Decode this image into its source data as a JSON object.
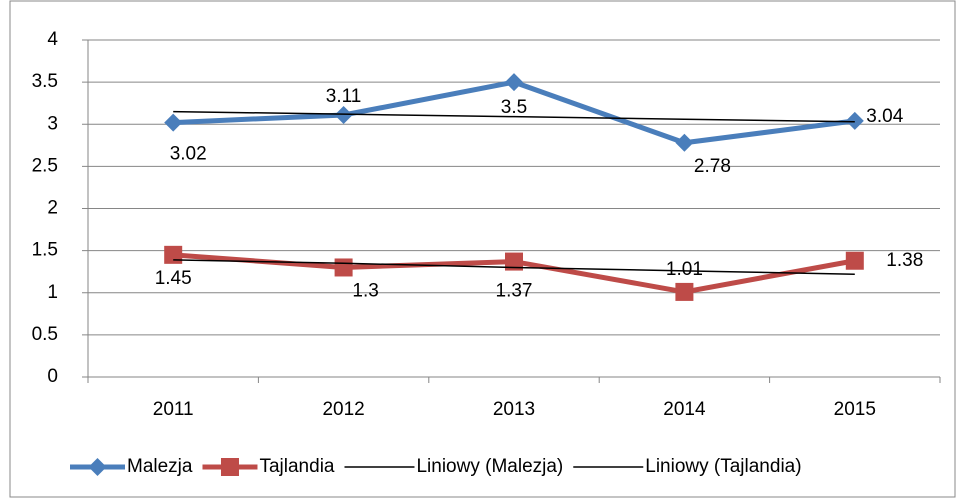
{
  "chart_data": {
    "type": "line",
    "categories": [
      "2011",
      "2012",
      "2013",
      "2014",
      "2015"
    ],
    "series": [
      {
        "name": "Malezja",
        "color": "#4a7ebb",
        "marker": "diamond",
        "values": [
          3.02,
          3.11,
          3.5,
          2.78,
          3.04
        ]
      },
      {
        "name": "Tajlandia",
        "color": "#be4b48",
        "marker": "square",
        "values": [
          1.45,
          1.3,
          1.37,
          1.01,
          1.38
        ]
      },
      {
        "name": "Liniowy (Malezja)",
        "color": "#000000",
        "trend": true,
        "values": [
          3.15,
          3.12,
          3.09,
          3.06,
          3.03
        ]
      },
      {
        "name": "Liniowy (Tajlandia)",
        "color": "#000000",
        "trend": true,
        "values": [
          1.39,
          1.35,
          1.3,
          1.26,
          1.22
        ]
      }
    ],
    "ylim": [
      0,
      4
    ],
    "yticks": [
      0,
      0.5,
      1,
      1.5,
      2,
      2.5,
      3,
      3.5,
      4
    ],
    "grid": true,
    "legend": "bottom"
  }
}
